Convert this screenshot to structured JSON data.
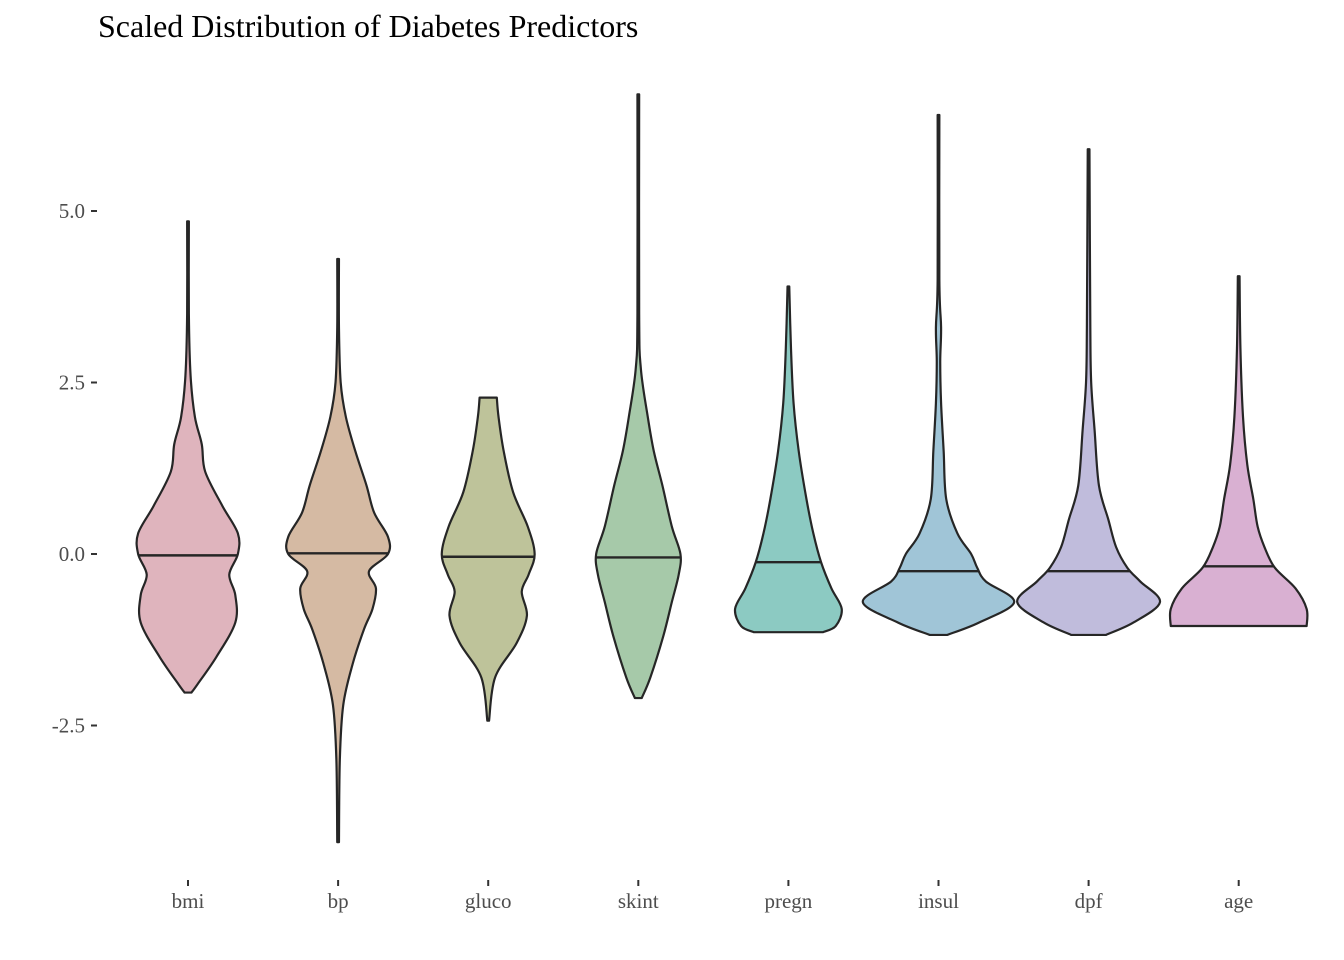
{
  "chart_data": {
    "type": "violin",
    "title": "Scaled Distribution of Diabetes Predictors",
    "xlabel": "",
    "ylabel": "",
    "ylim": [
      -4.7,
      7.0
    ],
    "yticks": [
      -2.5,
      0.0,
      2.5,
      5.0
    ],
    "ytick_labels": [
      "-2.5",
      "0.0",
      "2.5",
      "5.0"
    ],
    "grid": false,
    "legend": "none",
    "categories": [
      "bmi",
      "bp",
      "gluco",
      "skint",
      "pregn",
      "insul",
      "dpf",
      "age"
    ],
    "series": [
      {
        "category": "bmi",
        "color": "#dfb4bd",
        "median": -0.02,
        "profile": [
          [
            -2.02,
            0.04
          ],
          [
            -1.9,
            0.11
          ],
          [
            -1.5,
            0.33
          ],
          [
            -1.0,
            0.55
          ],
          [
            -0.6,
            0.55
          ],
          [
            -0.3,
            0.48
          ],
          [
            0.0,
            0.58
          ],
          [
            0.3,
            0.58
          ],
          [
            0.7,
            0.4
          ],
          [
            1.2,
            0.2
          ],
          [
            1.6,
            0.16
          ],
          [
            2.0,
            0.08
          ],
          [
            2.6,
            0.03
          ],
          [
            3.5,
            0.01
          ],
          [
            4.85,
            0.01
          ]
        ]
      },
      {
        "category": "bp",
        "color": "#d5baa3",
        "median": 0.01,
        "profile": [
          [
            -4.2,
            0.01
          ],
          [
            -3.0,
            0.02
          ],
          [
            -2.2,
            0.06
          ],
          [
            -1.6,
            0.17
          ],
          [
            -1.1,
            0.3
          ],
          [
            -0.8,
            0.4
          ],
          [
            -0.5,
            0.44
          ],
          [
            -0.25,
            0.36
          ],
          [
            0.0,
            0.58
          ],
          [
            0.25,
            0.58
          ],
          [
            0.6,
            0.42
          ],
          [
            1.0,
            0.33
          ],
          [
            1.5,
            0.2
          ],
          [
            2.0,
            0.09
          ],
          [
            2.5,
            0.03
          ],
          [
            3.3,
            0.01
          ],
          [
            4.3,
            0.01
          ]
        ]
      },
      {
        "category": "gluco",
        "color": "#bec39a",
        "median": -0.04,
        "profile": [
          [
            -2.43,
            0.01
          ],
          [
            -1.8,
            0.08
          ],
          [
            -1.3,
            0.33
          ],
          [
            -0.9,
            0.45
          ],
          [
            -0.55,
            0.39
          ],
          [
            -0.3,
            0.47
          ],
          [
            0.0,
            0.54
          ],
          [
            0.4,
            0.46
          ],
          [
            0.9,
            0.29
          ],
          [
            1.5,
            0.18
          ],
          [
            2.0,
            0.12
          ],
          [
            2.28,
            0.1
          ]
        ]
      },
      {
        "category": "skint",
        "color": "#a6c9a9",
        "median": -0.05,
        "profile": [
          [
            -2.1,
            0.04
          ],
          [
            -1.8,
            0.14
          ],
          [
            -1.2,
            0.29
          ],
          [
            -0.7,
            0.39
          ],
          [
            -0.3,
            0.47
          ],
          [
            0.0,
            0.49
          ],
          [
            0.4,
            0.39
          ],
          [
            1.0,
            0.28
          ],
          [
            1.5,
            0.18
          ],
          [
            2.0,
            0.11
          ],
          [
            2.7,
            0.03
          ],
          [
            3.5,
            0.01
          ],
          [
            6.7,
            0.01
          ]
        ]
      },
      {
        "category": "pregn",
        "color": "#8ccac2",
        "median": -0.12,
        "profile": [
          [
            -1.14,
            0.4
          ],
          [
            -1.05,
            0.55
          ],
          [
            -0.8,
            0.62
          ],
          [
            -0.5,
            0.5
          ],
          [
            -0.12,
            0.38
          ],
          [
            0.3,
            0.29
          ],
          [
            0.8,
            0.21
          ],
          [
            1.5,
            0.12
          ],
          [
            2.2,
            0.06
          ],
          [
            3.0,
            0.03
          ],
          [
            3.9,
            0.01
          ]
        ]
      },
      {
        "category": "insul",
        "color": "#a0c5d7",
        "median": -0.25,
        "profile": [
          [
            -1.18,
            0.1
          ],
          [
            -1.0,
            0.47
          ],
          [
            -0.7,
            0.88
          ],
          [
            -0.4,
            0.55
          ],
          [
            -0.2,
            0.45
          ],
          [
            0.0,
            0.38
          ],
          [
            0.3,
            0.22
          ],
          [
            0.8,
            0.09
          ],
          [
            1.5,
            0.06
          ],
          [
            2.2,
            0.03
          ],
          [
            2.8,
            0.02
          ],
          [
            3.3,
            0.03
          ],
          [
            4.0,
            0.01
          ],
          [
            6.4,
            0.01
          ]
        ]
      },
      {
        "category": "dpf",
        "color": "#c0bcdc",
        "median": -0.25,
        "profile": [
          [
            -1.18,
            0.2
          ],
          [
            -1.0,
            0.52
          ],
          [
            -0.7,
            0.83
          ],
          [
            -0.4,
            0.6
          ],
          [
            -0.2,
            0.45
          ],
          [
            0.1,
            0.32
          ],
          [
            0.5,
            0.23
          ],
          [
            1.0,
            0.12
          ],
          [
            1.8,
            0.07
          ],
          [
            2.5,
            0.03
          ],
          [
            3.3,
            0.02
          ],
          [
            5.9,
            0.01
          ]
        ]
      },
      {
        "category": "age",
        "color": "#d9b0d2",
        "median": -0.18,
        "profile": [
          [
            -1.05,
            0.79
          ],
          [
            -0.8,
            0.79
          ],
          [
            -0.5,
            0.66
          ],
          [
            -0.2,
            0.42
          ],
          [
            0.1,
            0.3
          ],
          [
            0.4,
            0.22
          ],
          [
            0.8,
            0.17
          ],
          [
            1.3,
            0.1
          ],
          [
            2.0,
            0.05
          ],
          [
            3.0,
            0.02
          ],
          [
            4.05,
            0.01
          ]
        ]
      }
    ]
  }
}
